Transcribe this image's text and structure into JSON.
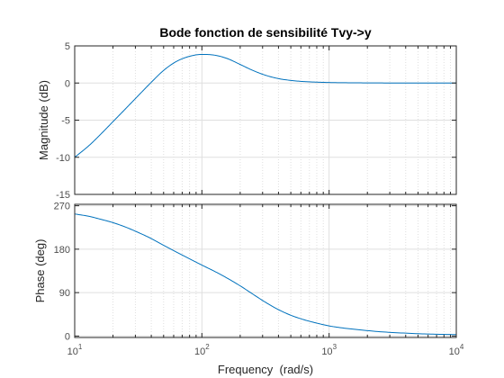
{
  "figure": {
    "background": "#ffffff",
    "line_color": "#0072bd",
    "grid_color": "#dfdfdf",
    "axis_color": "#262626"
  },
  "chart_data": [
    {
      "type": "line",
      "panel": "magnitude",
      "title": "Bode fonction de sensibilité Tvy->y",
      "xlabel": "",
      "ylabel": "Magnitude (dB)",
      "xscale": "log",
      "xlim": [
        10,
        10000
      ],
      "ylim": [
        -15,
        5
      ],
      "yticks": [
        -15,
        -10,
        -5,
        0,
        5
      ],
      "ytick_labels": [
        "-15",
        "-10",
        "-5",
        "0",
        "5"
      ],
      "grid": true,
      "series": [
        {
          "x": [
            10,
            13,
            16,
            20,
            25,
            32,
            40,
            50,
            63,
            80,
            100,
            126,
            158,
            200,
            251,
            316,
            398,
            501,
            631,
            794,
            1000,
            1585,
            2512,
            3981,
            6310,
            10000
          ],
          "y": [
            -10.0,
            -8.4,
            -6.9,
            -5.2,
            -3.5,
            -1.6,
            0.1,
            1.7,
            2.9,
            3.6,
            3.85,
            3.75,
            3.3,
            2.5,
            1.7,
            1.05,
            0.6,
            0.35,
            0.2,
            0.12,
            0.07,
            0.03,
            0.01,
            0.0,
            0.0,
            0.0
          ]
        }
      ]
    },
    {
      "type": "line",
      "panel": "phase",
      "title": "",
      "xlabel": "Frequency  (rad/s)",
      "ylabel": "Phase (deg)",
      "xscale": "log",
      "xlim": [
        10,
        10000
      ],
      "ylim": [
        -3,
        273
      ],
      "xticks": [
        10,
        100,
        1000,
        10000
      ],
      "xtick_labels": [
        {
          "base": "10",
          "exp": "1"
        },
        {
          "base": "10",
          "exp": "2"
        },
        {
          "base": "10",
          "exp": "3"
        },
        {
          "base": "10",
          "exp": "4"
        }
      ],
      "yticks": [
        0,
        90,
        180,
        270
      ],
      "ytick_labels": [
        "0",
        "90",
        "180",
        "270"
      ],
      "grid": true,
      "series": [
        {
          "x": [
            10,
            13,
            16,
            20,
            25,
            32,
            40,
            50,
            63,
            80,
            100,
            126,
            158,
            200,
            251,
            316,
            398,
            501,
            631,
            794,
            1000,
            1259,
            1585,
            2512,
            3981,
            6310,
            10000
          ],
          "y": [
            253,
            248,
            242,
            235,
            226,
            214,
            202,
            188,
            174,
            160,
            147,
            134,
            120,
            104,
            87,
            70,
            55,
            43,
            34,
            27,
            21,
            17,
            14,
            9,
            6,
            4,
            3
          ]
        }
      ]
    }
  ]
}
